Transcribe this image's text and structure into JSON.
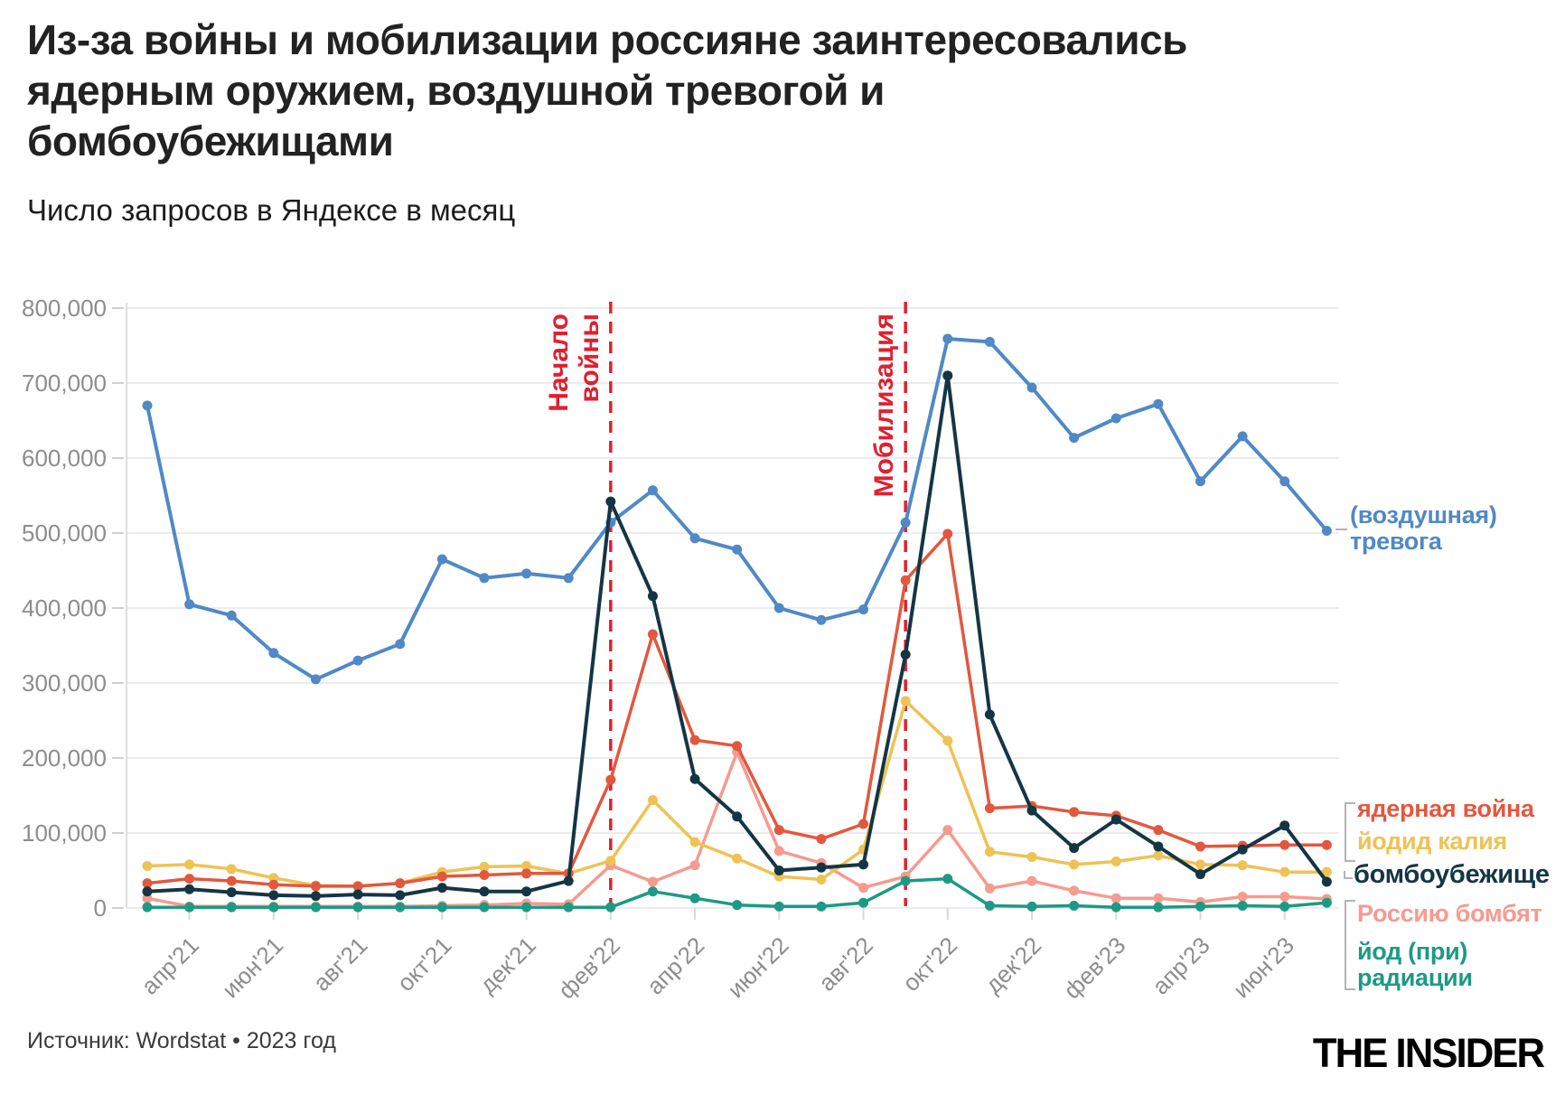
{
  "header": {
    "title": "Из-за войны и мобилизации россияне заинтересовались\nядерным оружием, воздушной тревогой и\nбомбоубежищами",
    "subtitle": "Число запросов в Яндексе в месяц"
  },
  "footer": {
    "source": "Источник: Wordstat • 2023 год",
    "logo": "THE INSIDER"
  },
  "chart_data": {
    "type": "line",
    "title": "Из-за войны и мобилизации россияне заинтересовались ядерным оружием, воздушной тревогой и бомбоубежищами",
    "subtitle": "Число запросов в Яндексе в месяц",
    "source": "Источник: Wordstat • 2023 год",
    "grid": "horizontal",
    "legend_position": "right-edge-labels",
    "ylim": [
      0,
      800000
    ],
    "y_tick_step": 100000,
    "y_tick_labels": [
      "0",
      "100,000",
      "200,000",
      "300,000",
      "400,000",
      "500,000",
      "600,000",
      "700,000",
      "800,000"
    ],
    "x": [
      "мар'21",
      "апр'21",
      "май'21",
      "июн'21",
      "июл'21",
      "авг'21",
      "сен'21",
      "окт'21",
      "ноя'21",
      "дек'21",
      "янв'22",
      "фев'22",
      "мар'22",
      "апр'22",
      "май'22",
      "июн'22",
      "июл'22",
      "авг'22",
      "сен'22",
      "окт'22",
      "ноя'22",
      "дек'22",
      "янв'23",
      "фев'23",
      "мар'23",
      "апр'23",
      "май'23",
      "июн'23",
      "июл'23"
    ],
    "x_tick_labels": [
      "апр'21",
      "июн'21",
      "авг'21",
      "окт'21",
      "дек'21",
      "фев'22",
      "апр'22",
      "июн'22",
      "авг'22",
      "окт'22",
      "дек'22",
      "фев'23",
      "апр'23",
      "июн'23"
    ],
    "annotation_color": "#e0202f",
    "annotations": [
      {
        "label": "Начало войны",
        "text_lines": [
          "Начало",
          "войны"
        ],
        "month": "фев'22",
        "month_index": 11
      },
      {
        "label": "Мобилизация",
        "text_lines": [
          "Мобилизация"
        ],
        "month": "сен'22",
        "month_index": 18
      }
    ],
    "series": [
      {
        "name": "(воздушная) тревога",
        "display_label": "(воздушная)\nтревога",
        "color": "#5089c5",
        "values": [
          670000,
          405000,
          390000,
          340000,
          305000,
          330000,
          352000,
          465000,
          440000,
          446000,
          440000,
          514000,
          557000,
          493000,
          478000,
          400000,
          384000,
          398000,
          514000,
          759000,
          755000,
          694000,
          627000,
          653000,
          672000,
          569000,
          629000,
          569000,
          503000
        ]
      },
      {
        "name": "ядерная война",
        "display_label": "ядерная война",
        "color": "#e2583e",
        "values": [
          33000,
          39000,
          36000,
          31000,
          29000,
          29000,
          33000,
          42000,
          44000,
          46000,
          46000,
          171000,
          365000,
          224000,
          216000,
          104000,
          92000,
          112000,
          437000,
          499000,
          133000,
          136000,
          128000,
          123000,
          104000,
          82000,
          83000,
          84000,
          84000
        ]
      },
      {
        "name": "йодид калия",
        "display_label": "йодид калия",
        "color": "#eec254",
        "values": [
          56000,
          58000,
          52000,
          40000,
          30000,
          29000,
          33000,
          48000,
          55000,
          56000,
          46000,
          63000,
          144000,
          88000,
          66000,
          42000,
          38000,
          78000,
          276000,
          223000,
          75000,
          68000,
          58000,
          62000,
          70000,
          58000,
          57000,
          48000,
          48000
        ]
      },
      {
        "name": "бомбоубежище",
        "display_label": "бомбоубежище",
        "color": "#143644",
        "values": [
          22000,
          25000,
          21000,
          17000,
          16000,
          18000,
          17000,
          27000,
          22000,
          22000,
          36000,
          542000,
          416000,
          172000,
          122000,
          50000,
          54000,
          58000,
          338000,
          710000,
          258000,
          130000,
          80000,
          118000,
          82000,
          45000,
          78000,
          110000,
          35000
        ]
      },
      {
        "name": "Россию бомбят",
        "display_label": "Россию бомбят",
        "color": "#f59b8f",
        "values": [
          13000,
          2000,
          2000,
          2000,
          2000,
          2000,
          2000,
          3000,
          4000,
          6000,
          5000,
          57000,
          35000,
          57000,
          208000,
          76000,
          60000,
          27000,
          42000,
          104000,
          26000,
          36000,
          23000,
          13000,
          13000,
          8000,
          15000,
          15000,
          12000
        ]
      },
      {
        "name": "йод (при) радиации",
        "display_label": "йод (при)\nрадиации",
        "color": "#1d9a83",
        "values": [
          1000,
          1000,
          1000,
          1000,
          1000,
          1000,
          1000,
          1000,
          1000,
          1000,
          1000,
          1000,
          22000,
          13000,
          4000,
          2000,
          2000,
          7000,
          36000,
          39000,
          3000,
          2000,
          3000,
          1000,
          1000,
          2000,
          3000,
          2000,
          7000
        ]
      }
    ]
  }
}
